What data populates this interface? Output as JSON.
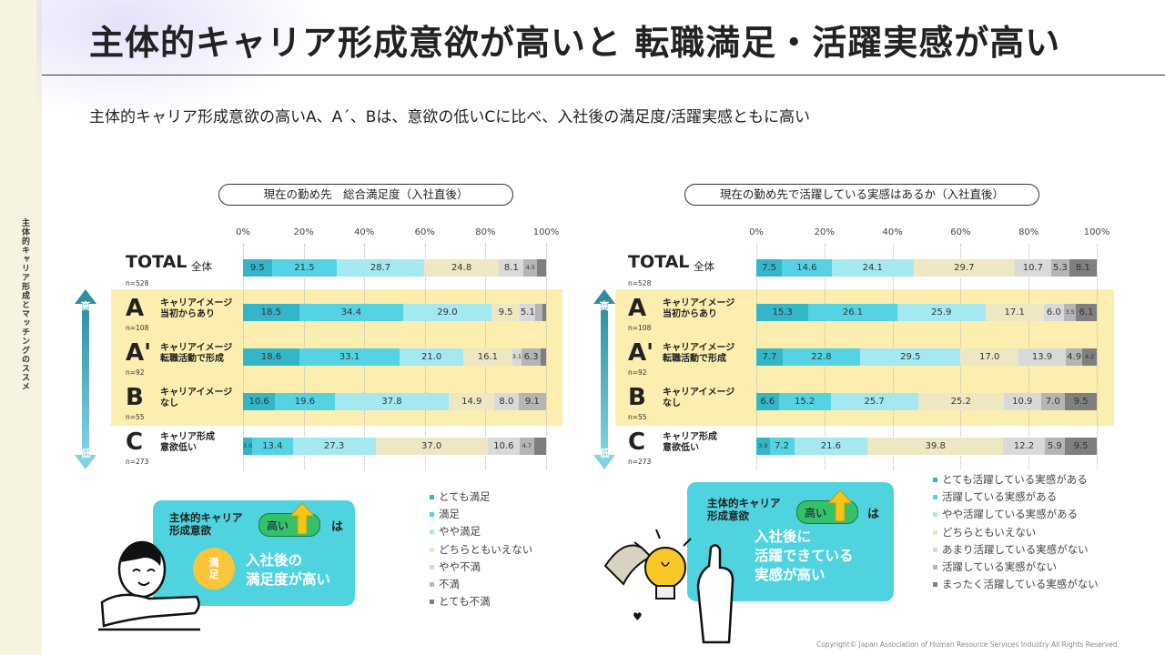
{
  "sidebar_text": "主体的キャリア形成とマッチングのススメ",
  "title": "主体的キャリア形成意欲が高いと 転職満足・活躍実感が高い",
  "subtitle": "主体的キャリア形成意欲の高いA、A´、Bは、意欲の低いCに比べ、入社後の満足度/活躍実感ともに高い",
  "copyright": "Copyright© Japan Association of Human Resource Services Industry All Rights Reserved.",
  "rows": [
    {
      "letter": "TOTAL",
      "sub": "全体",
      "desc": "",
      "n": "n=528"
    },
    {
      "letter": "A",
      "sub": "",
      "desc": "キャリアイメージ\n当初からあり",
      "n": "n=108"
    },
    {
      "letter": "A'",
      "sub": "",
      "desc": "キャリアイメージ\n転職活動で形成",
      "n": "n=92"
    },
    {
      "letter": "B",
      "sub": "",
      "desc": "キャリアイメージ\nなし",
      "n": "n=55"
    },
    {
      "letter": "C",
      "sub": "",
      "desc": "キャリア形成\n意欲低い",
      "n": "n=273"
    }
  ],
  "arrow": {
    "high": "高",
    "low": "低"
  },
  "chart_data": [
    {
      "type": "bar",
      "stacked": true,
      "orientation": "horizontal",
      "title": "現在の勤め先　総合満足度（入社直後）",
      "categories": [
        "TOTAL 全体",
        "A",
        "A'",
        "B",
        "C"
      ],
      "xlim": [
        0,
        100
      ],
      "ticks": [
        "0%",
        "20%",
        "40%",
        "60%",
        "80%",
        "100%"
      ],
      "colors": [
        "#33b6c8",
        "#55d3e2",
        "#a4e8f0",
        "#ede7c4",
        "#d9d9d9",
        "#b5b5b5",
        "#7f7f7f"
      ],
      "series": [
        {
          "name": "とても満足",
          "values": [
            9.5,
            18.5,
            18.6,
            10.6,
            3.0
          ]
        },
        {
          "name": "満足",
          "values": [
            21.5,
            34.4,
            33.1,
            19.6,
            13.4
          ]
        },
        {
          "name": "やや満足",
          "values": [
            28.7,
            29.0,
            21.0,
            37.8,
            27.3
          ]
        },
        {
          "name": "どちらともいえない",
          "values": [
            24.8,
            9.5,
            16.1,
            14.9,
            37.0
          ]
        },
        {
          "name": "やや不満",
          "values": [
            8.1,
            5.1,
            3.1,
            8.0,
            10.6
          ]
        },
        {
          "name": "不満",
          "values": [
            4.5,
            2.2,
            6.3,
            9.1,
            4.7
          ]
        },
        {
          "name": "とても不満",
          "values": [
            2.9,
            1.3,
            1.8,
            0,
            4.0
          ]
        }
      ],
      "labels": [
        [
          "9.5",
          "21.5",
          "28.7",
          "24.8",
          "8.1",
          "4.5",
          ""
        ],
        [
          "18.5",
          "34.4",
          "29.0",
          "9.5",
          "5.1",
          "",
          ""
        ],
        [
          "18.6",
          "33.1",
          "21.0",
          "16.1",
          "3.1",
          "6.3",
          ""
        ],
        [
          "10.6",
          "19.6",
          "37.8",
          "14.9",
          "8.0",
          "9.1",
          ""
        ],
        [
          "3.0",
          "13.4",
          "27.3",
          "37.0",
          "10.6",
          "4.7",
          ""
        ]
      ],
      "legend_position": "bottom-right"
    },
    {
      "type": "bar",
      "stacked": true,
      "orientation": "horizontal",
      "title": "現在の勤め先で活躍している実感はあるか（入社直後）",
      "categories": [
        "TOTAL 全体",
        "A",
        "A'",
        "B",
        "C"
      ],
      "xlim": [
        0,
        100
      ],
      "ticks": [
        "0%",
        "20%",
        "40%",
        "60%",
        "80%",
        "100%"
      ],
      "colors": [
        "#33b6c8",
        "#55d3e2",
        "#a4e8f0",
        "#ede7c4",
        "#d9d9d9",
        "#b5b5b5",
        "#7f7f7f"
      ],
      "series": [
        {
          "name": "とても活躍している実感がある",
          "values": [
            7.5,
            15.3,
            7.7,
            6.6,
            3.9
          ]
        },
        {
          "name": "活躍している実感がある",
          "values": [
            14.6,
            26.1,
            22.8,
            15.2,
            7.2
          ]
        },
        {
          "name": "やや活躍している実感がある",
          "values": [
            24.1,
            25.9,
            29.5,
            25.7,
            21.6
          ]
        },
        {
          "name": "どちらともいえない",
          "values": [
            29.7,
            17.1,
            17.0,
            25.2,
            39.8
          ]
        },
        {
          "name": "あまり活躍している実感がない",
          "values": [
            10.7,
            6.0,
            13.9,
            10.9,
            12.2
          ]
        },
        {
          "name": "活躍している実感がない",
          "values": [
            5.3,
            3.5,
            4.9,
            7.0,
            5.9
          ]
        },
        {
          "name": "まったく活躍している実感がない",
          "values": [
            8.1,
            6.1,
            4.2,
            9.5,
            9.5
          ]
        }
      ],
      "labels": [
        [
          "7.5",
          "14.6",
          "24.1",
          "29.7",
          "10.7",
          "5.3",
          "8.1"
        ],
        [
          "15.3",
          "26.1",
          "25.9",
          "17.1",
          "6.0",
          "3.5",
          "6.1"
        ],
        [
          "7.7",
          "22.8",
          "29.5",
          "17.0",
          "13.9",
          "4.9",
          "4.2"
        ],
        [
          "6.6",
          "15.2",
          "25.7",
          "25.2",
          "10.9",
          "7.0",
          "9.5"
        ],
        [
          "3.9",
          "7.2",
          "21.6",
          "39.8",
          "12.2",
          "5.9",
          "9.5"
        ]
      ],
      "legend_position": "bottom-right"
    }
  ],
  "callouts": [
    {
      "head": "主体的キャリア\n形成意欲",
      "toggle": "高い",
      "ha": "は",
      "circle": "満\n足",
      "body": "入社後の\n満足度が高い"
    },
    {
      "head": "主体的キャリア\n形成意欲",
      "toggle": "高い",
      "ha": "は",
      "body": "入社後に\n活躍できている\n実感が高い"
    }
  ]
}
